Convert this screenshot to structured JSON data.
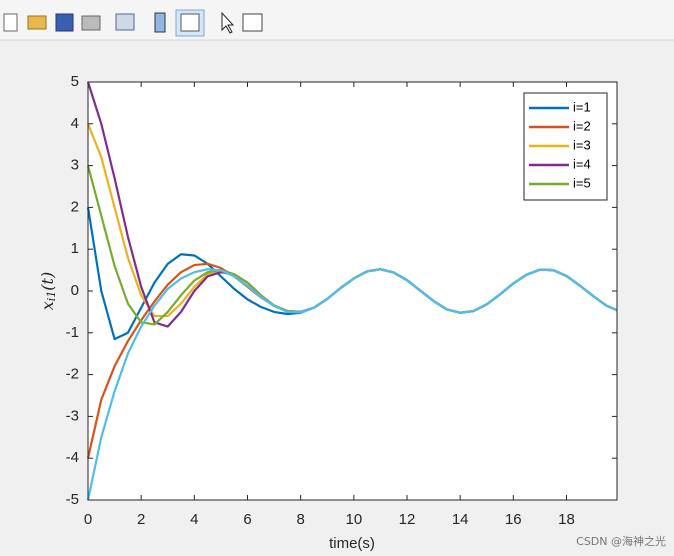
{
  "chart_data": {
    "type": "line",
    "xlabel": "time(s)",
    "ylabel": {
      "base": "x",
      "sub": "i1",
      "arg": "(t)"
    },
    "x": [
      0,
      0.5,
      1,
      1.5,
      2,
      2.5,
      3,
      3.5,
      4,
      4.5,
      5,
      5.5,
      6,
      6.5,
      7,
      7.5,
      8,
      8.5,
      9,
      9.5,
      10,
      10.5,
      11,
      11.5,
      12,
      12.5,
      13,
      13.5,
      14,
      14.5,
      15,
      15.5,
      16,
      16.5,
      17,
      17.5,
      18,
      18.5,
      19,
      19.5,
      19.9
    ],
    "xlim": [
      0,
      19.9
    ],
    "xticks": [
      0,
      2,
      4,
      6,
      8,
      10,
      12,
      14,
      16,
      18
    ],
    "ylim": [
      -5,
      5
    ],
    "yticks": [
      -5,
      -4,
      -3,
      -2,
      -1,
      0,
      1,
      2,
      3,
      4,
      5
    ],
    "grid": false,
    "legend_position": "upper-right",
    "series": [
      {
        "name": "i=1",
        "color": "#0072BD",
        "values": [
          2,
          0.0,
          -1.15,
          -1.0,
          -0.4,
          0.2,
          0.65,
          0.88,
          0.85,
          0.65,
          0.35,
          0.05,
          -0.2,
          -0.38,
          -0.5,
          -0.55,
          -0.52,
          -0.4,
          -0.19,
          0.07,
          0.3,
          0.47,
          0.52,
          0.44,
          0.26,
          0.01,
          -0.24,
          -0.44,
          -0.52,
          -0.48,
          -0.32,
          -0.08,
          0.18,
          0.39,
          0.51,
          0.5,
          0.36,
          0.13,
          -0.12,
          -0.35,
          -0.46
        ]
      },
      {
        "name": "i=2",
        "color": "#D95319",
        "values": [
          -4,
          -2.6,
          -1.8,
          -1.2,
          -0.7,
          -0.25,
          0.15,
          0.45,
          0.62,
          0.65,
          0.55,
          0.35,
          0.1,
          -0.15,
          -0.35,
          -0.48,
          -0.5,
          -0.4,
          -0.19,
          0.07,
          0.3,
          0.47,
          0.52,
          0.44,
          0.26,
          0.01,
          -0.24,
          -0.44,
          -0.52,
          -0.48,
          -0.32,
          -0.08,
          0.18,
          0.39,
          0.51,
          0.5,
          0.36,
          0.13,
          -0.12,
          -0.35,
          -0.46
        ]
      },
      {
        "name": "i=3",
        "color": "#EDB120",
        "values": [
          4,
          3.2,
          2.0,
          0.8,
          -0.1,
          -0.6,
          -0.6,
          -0.3,
          0.1,
          0.4,
          0.5,
          0.4,
          0.2,
          -0.1,
          -0.35,
          -0.48,
          -0.5,
          -0.4,
          -0.19,
          0.07,
          0.3,
          0.47,
          0.52,
          0.44,
          0.26,
          0.01,
          -0.24,
          -0.44,
          -0.52,
          -0.48,
          -0.32,
          -0.08,
          0.18,
          0.39,
          0.51,
          0.5,
          0.36,
          0.13,
          -0.12,
          -0.35,
          -0.46
        ]
      },
      {
        "name": "i=4",
        "color": "#7E2F8E",
        "values": [
          5,
          4.0,
          2.7,
          1.3,
          0.1,
          -0.75,
          -0.85,
          -0.5,
          0.0,
          0.35,
          0.45,
          0.4,
          0.2,
          -0.1,
          -0.35,
          -0.48,
          -0.5,
          -0.4,
          -0.19,
          0.07,
          0.3,
          0.47,
          0.52,
          0.44,
          0.26,
          0.01,
          -0.24,
          -0.44,
          -0.52,
          -0.48,
          -0.32,
          -0.08,
          0.18,
          0.39,
          0.51,
          0.5,
          0.36,
          0.13,
          -0.12,
          -0.35,
          -0.46
        ]
      },
      {
        "name": "i=5",
        "color": "#77AC30",
        "values": [
          3,
          1.8,
          0.6,
          -0.3,
          -0.75,
          -0.8,
          -0.5,
          -0.1,
          0.25,
          0.45,
          0.5,
          0.4,
          0.2,
          -0.1,
          -0.35,
          -0.48,
          -0.5,
          -0.4,
          -0.19,
          0.07,
          0.3,
          0.47,
          0.52,
          0.44,
          0.26,
          0.01,
          -0.24,
          -0.44,
          -0.52,
          -0.48,
          -0.32,
          -0.08,
          0.18,
          0.39,
          0.51,
          0.5,
          0.36,
          0.13,
          -0.12,
          -0.35,
          -0.46
        ]
      },
      {
        "color": "#4DBEEE",
        "values": [
          -5,
          -3.5,
          -2.4,
          -1.5,
          -0.85,
          -0.35,
          0.05,
          0.3,
          0.45,
          0.52,
          0.49,
          0.35,
          0.12,
          -0.14,
          -0.36,
          -0.5,
          -0.51,
          -0.4,
          -0.19,
          0.07,
          0.3,
          0.47,
          0.52,
          0.44,
          0.26,
          0.01,
          -0.24,
          -0.44,
          -0.52,
          -0.48,
          -0.32,
          -0.08,
          0.18,
          0.39,
          0.51,
          0.5,
          0.36,
          0.13,
          -0.12,
          -0.35,
          -0.46
        ]
      }
    ],
    "watermark": "CSDN @海神之光"
  }
}
